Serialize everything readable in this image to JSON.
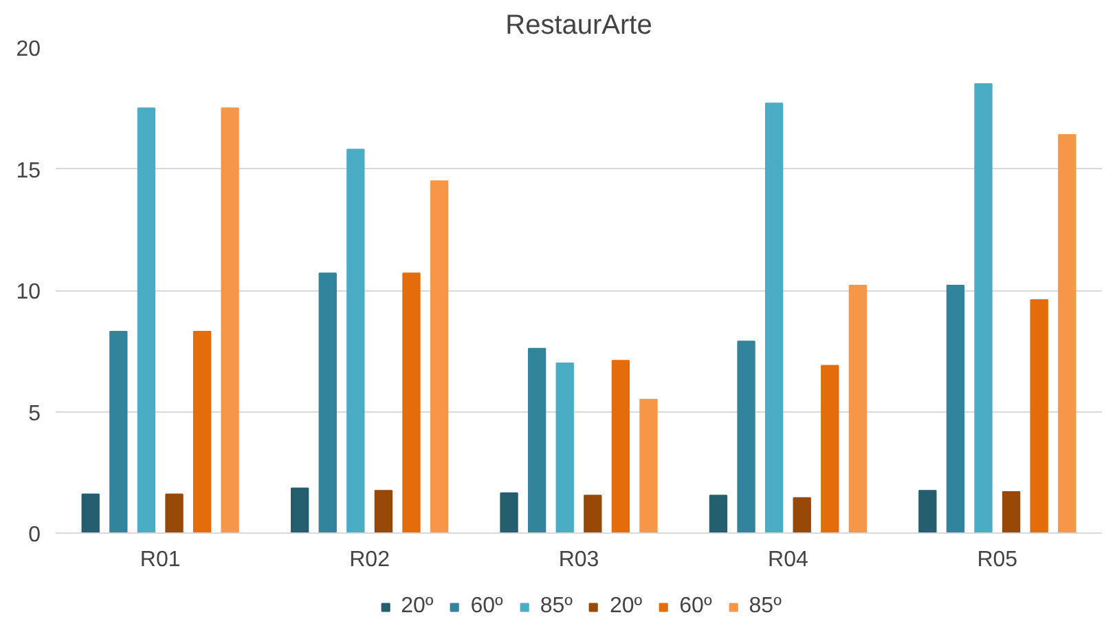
{
  "chart_data": {
    "type": "bar",
    "title": "RestaurArte",
    "categories": [
      "R01",
      "R02",
      "R03",
      "R04",
      "R05"
    ],
    "series": [
      {
        "name": "20º",
        "color": "#255e6e",
        "values": [
          1.6,
          1.85,
          1.65,
          1.55,
          1.75
        ]
      },
      {
        "name": "60º",
        "color": "#31849b",
        "values": [
          8.3,
          10.7,
          7.6,
          7.9,
          10.2
        ]
      },
      {
        "name": "85º",
        "color": "#4bacc6",
        "values": [
          17.5,
          15.8,
          7.0,
          17.7,
          18.5
        ]
      },
      {
        "name": "20º",
        "color": "#984807",
        "values": [
          1.6,
          1.75,
          1.55,
          1.45,
          1.7
        ]
      },
      {
        "name": "60º",
        "color": "#e46c0a",
        "values": [
          8.3,
          10.7,
          7.1,
          6.9,
          9.6
        ]
      },
      {
        "name": "85º",
        "color": "#f79646",
        "values": [
          17.5,
          14.5,
          5.5,
          10.2,
          16.4
        ]
      }
    ],
    "ylim": [
      0,
      20
    ],
    "yticks": [
      0,
      5,
      10,
      15,
      20
    ],
    "grid": "y",
    "legend": "bottom"
  }
}
